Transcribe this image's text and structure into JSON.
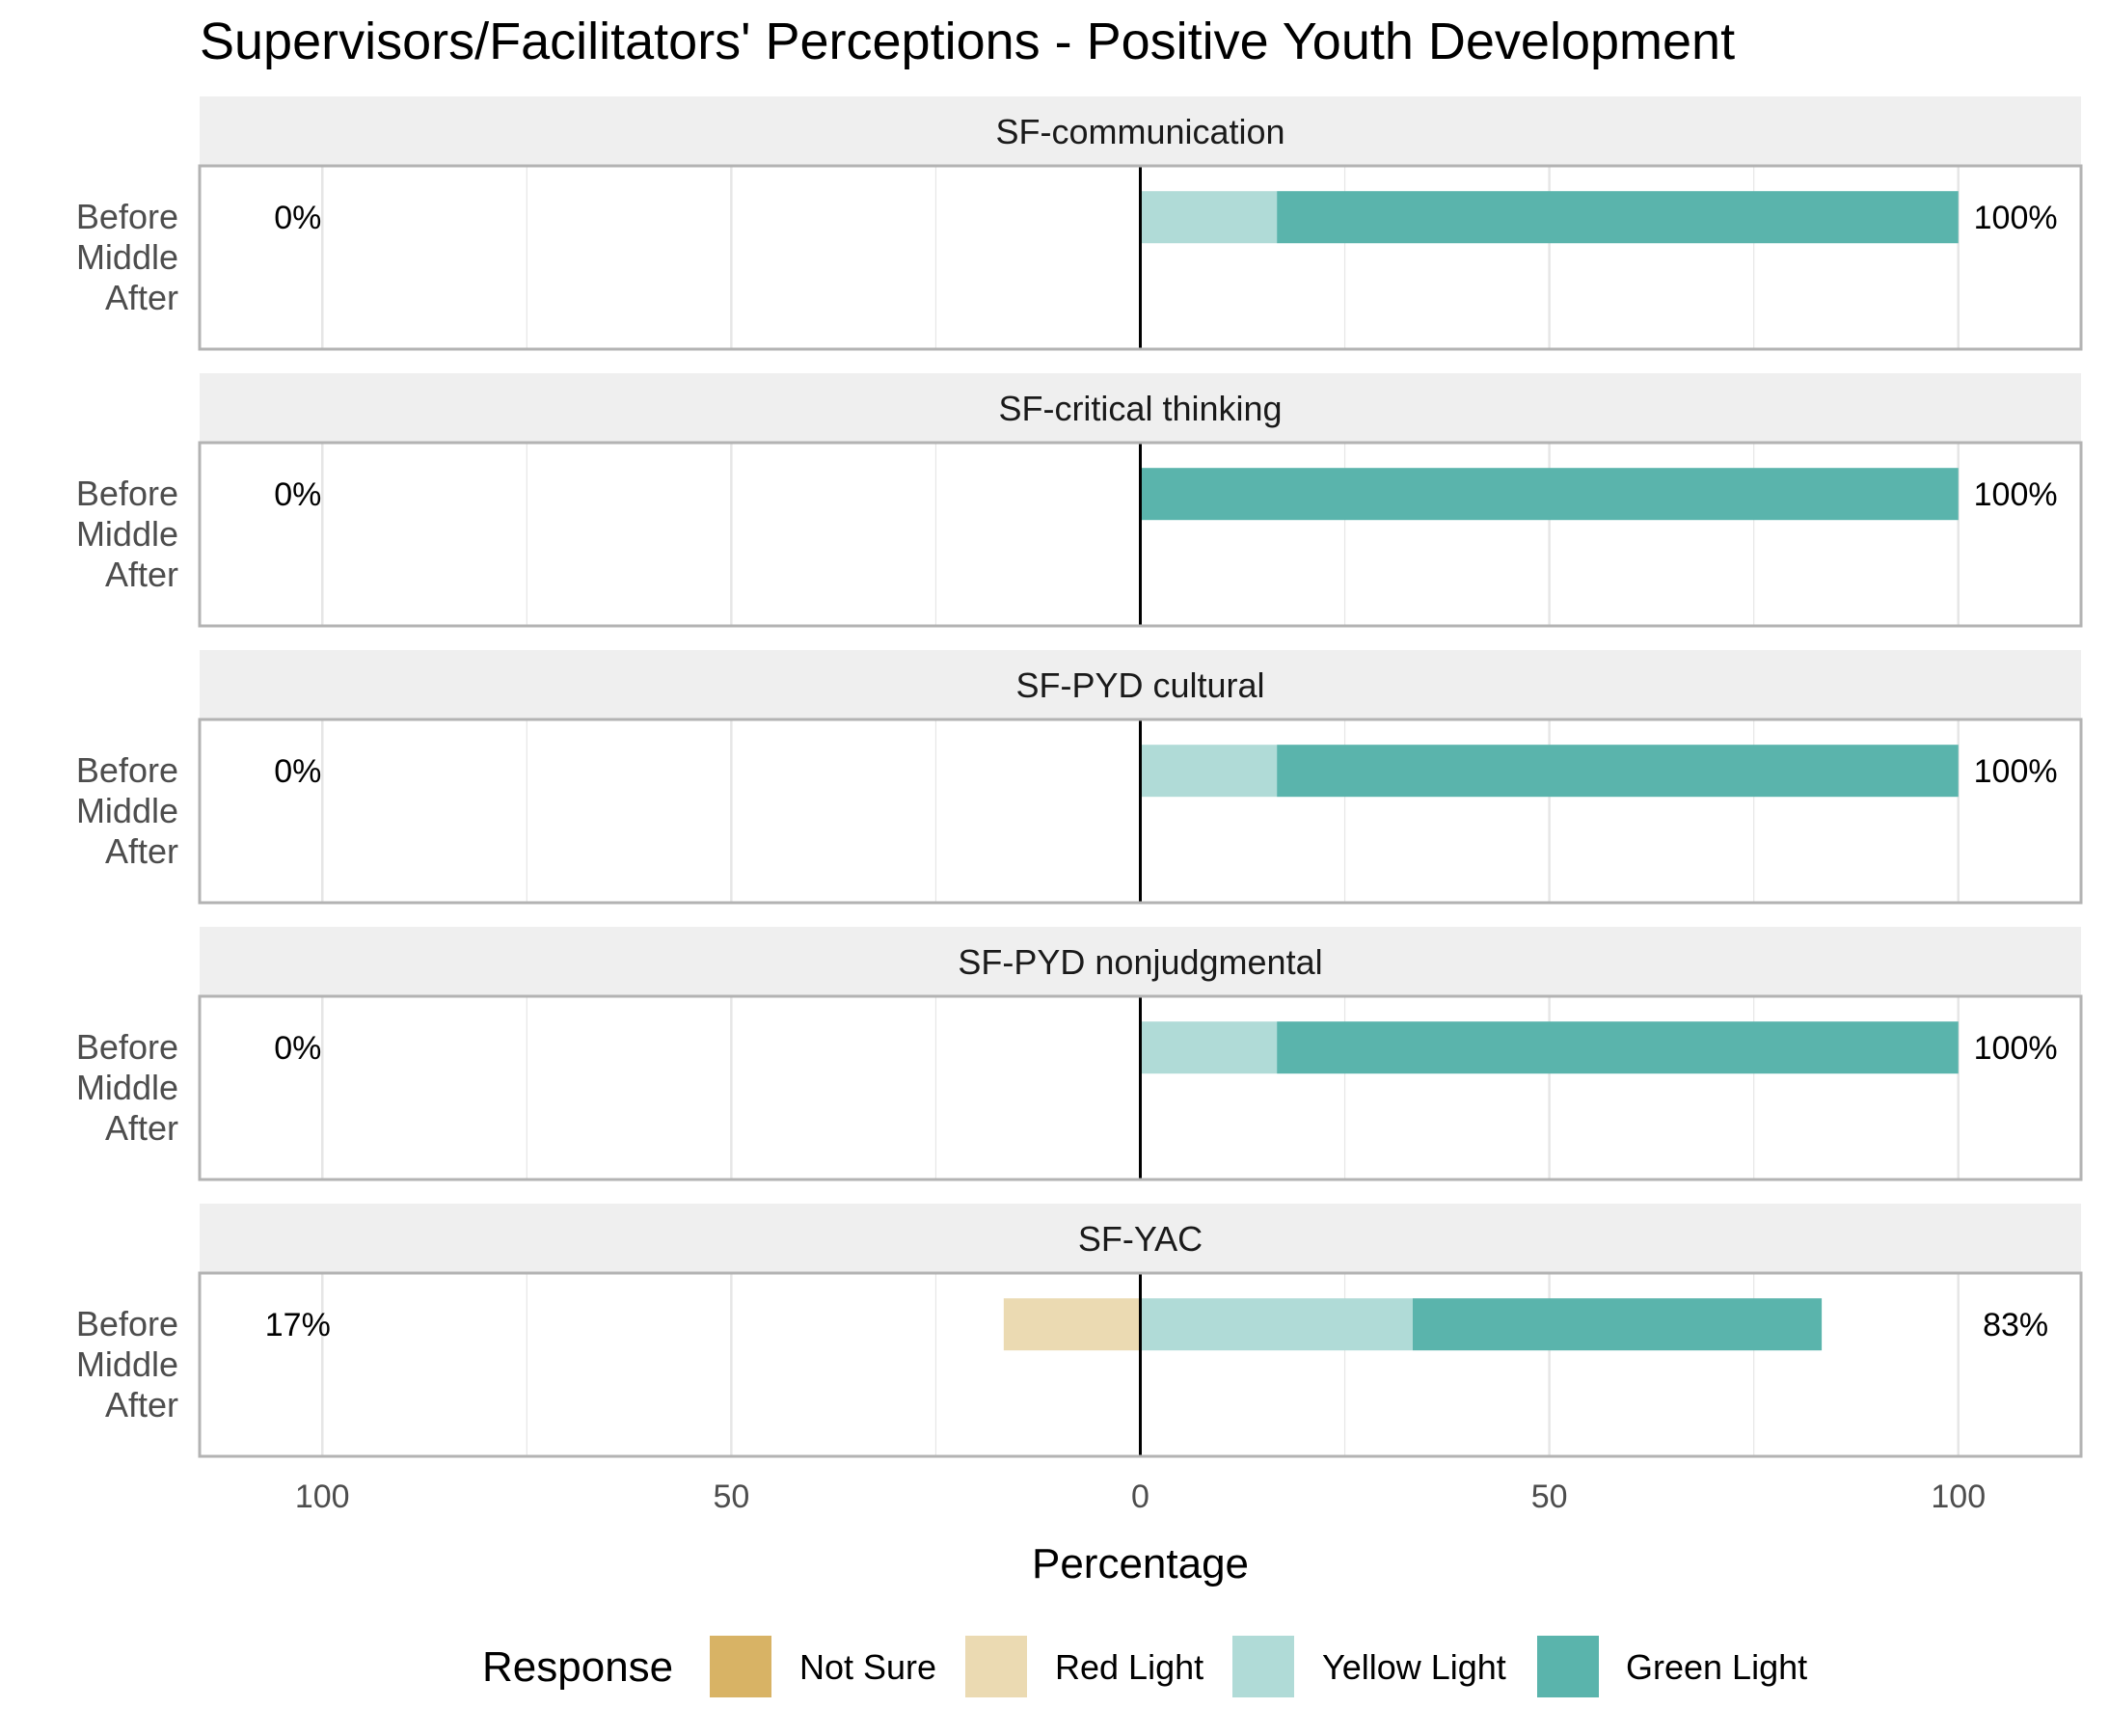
{
  "chart_data": {
    "type": "bar",
    "orientation": "horizontal-diverging",
    "title": "Supervisors/Facilitators' Perceptions - Positive Youth Development",
    "xlabel": "Percentage",
    "xlim": [
      -115,
      115
    ],
    "x_ticks": [
      -100,
      -50,
      0,
      50,
      100
    ],
    "x_tick_labels": [
      "100",
      "50",
      "0",
      "50",
      "100"
    ],
    "rows": [
      "Before",
      "Middle",
      "After"
    ],
    "legend": {
      "title": "Response",
      "placement": "bottom",
      "entries": [
        {
          "name": "Not Sure",
          "color": "#D8B365"
        },
        {
          "name": "Red Light",
          "color": "#EBDAB2"
        },
        {
          "name": "Yellow Light",
          "color": "#B0DBD7"
        },
        {
          "name": "Green Light",
          "color": "#5AB4AC"
        }
      ]
    },
    "grid": true,
    "panels": [
      {
        "strip": "SF-communication",
        "bars": [
          {
            "row": "Before",
            "negative": [
              {
                "name": "Red Light",
                "value": 0
              }
            ],
            "positive": [
              {
                "name": "Yellow Light",
                "value": 16.7
              },
              {
                "name": "Green Light",
                "value": 83.3
              }
            ],
            "left_label": "0%",
            "right_label": "100%"
          }
        ]
      },
      {
        "strip": "SF-critical thinking",
        "bars": [
          {
            "row": "Before",
            "negative": [
              {
                "name": "Red Light",
                "value": 0
              }
            ],
            "positive": [
              {
                "name": "Yellow Light",
                "value": 0
              },
              {
                "name": "Green Light",
                "value": 100
              }
            ],
            "left_label": "0%",
            "right_label": "100%"
          }
        ]
      },
      {
        "strip": "SF-PYD cultural",
        "bars": [
          {
            "row": "Before",
            "negative": [
              {
                "name": "Red Light",
                "value": 0
              }
            ],
            "positive": [
              {
                "name": "Yellow Light",
                "value": 16.7
              },
              {
                "name": "Green Light",
                "value": 83.3
              }
            ],
            "left_label": "0%",
            "right_label": "100%"
          }
        ]
      },
      {
        "strip": "SF-PYD nonjudgmental",
        "bars": [
          {
            "row": "Before",
            "negative": [
              {
                "name": "Red Light",
                "value": 0
              }
            ],
            "positive": [
              {
                "name": "Yellow Light",
                "value": 16.7
              },
              {
                "name": "Green Light",
                "value": 83.3
              }
            ],
            "left_label": "0%",
            "right_label": "100%"
          }
        ]
      },
      {
        "strip": "SF-YAC",
        "bars": [
          {
            "row": "Before",
            "negative": [
              {
                "name": "Red Light",
                "value": 16.7
              }
            ],
            "positive": [
              {
                "name": "Yellow Light",
                "value": 33.3
              },
              {
                "name": "Green Light",
                "value": 50
              }
            ],
            "left_label": "17%",
            "right_label": "83%"
          }
        ]
      }
    ]
  }
}
